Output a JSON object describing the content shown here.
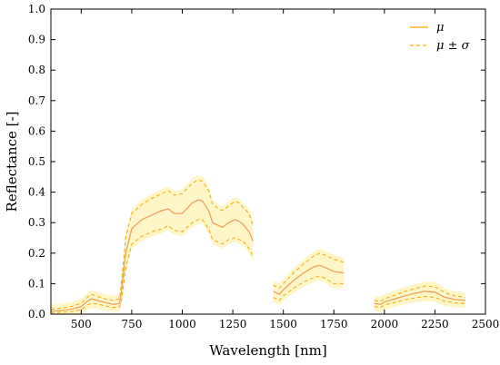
{
  "chart_data": {
    "type": "line",
    "xlabel": "Wavelength [nm]",
    "ylabel": "Reflectance [-]",
    "xlim": [
      350,
      2500
    ],
    "ylim": [
      0,
      1.0
    ],
    "x_ticks": [
      500,
      750,
      1000,
      1250,
      1500,
      1750,
      2000,
      2250,
      2500
    ],
    "x_tick_labels": [
      "500",
      "750",
      "1000",
      "1250",
      "1500",
      "1750",
      "2000",
      "2250",
      "2500"
    ],
    "y_ticks": [
      0,
      0.1,
      0.2,
      0.3,
      0.4,
      0.5,
      0.6,
      0.7,
      0.8,
      0.9,
      1.0
    ],
    "y_tick_labels": [
      "0.0",
      "0.1",
      "0.2",
      "0.3",
      "0.4",
      "0.5",
      "0.6",
      "0.7",
      "0.8",
      "0.9",
      "1.0"
    ],
    "grid": false,
    "legend_position": "top-right",
    "legend": [
      {
        "label": "μ",
        "style": "solid"
      },
      {
        "label": "μ ± σ",
        "style": "dashed"
      }
    ],
    "colors": {
      "mean": "#f0a060",
      "std": "#f5a800",
      "band": "#fff6c8"
    },
    "segments": [
      {
        "x": [
          350,
          400,
          450,
          500,
          530,
          550,
          580,
          620,
          660,
          690,
          700,
          720,
          750,
          800,
          850,
          900,
          930,
          960,
          1000,
          1050,
          1080,
          1100,
          1130,
          1150,
          1180,
          1200,
          1230,
          1260,
          1280,
          1300,
          1330,
          1350
        ],
        "mean": [
          0.01,
          0.012,
          0.016,
          0.025,
          0.042,
          0.05,
          0.045,
          0.038,
          0.032,
          0.035,
          0.08,
          0.2,
          0.28,
          0.31,
          0.325,
          0.34,
          0.345,
          0.33,
          0.33,
          0.365,
          0.375,
          0.37,
          0.34,
          0.3,
          0.29,
          0.285,
          0.3,
          0.31,
          0.305,
          0.295,
          0.27,
          0.24
        ],
        "upper": [
          0.016,
          0.02,
          0.025,
          0.036,
          0.055,
          0.065,
          0.058,
          0.05,
          0.045,
          0.05,
          0.11,
          0.25,
          0.33,
          0.36,
          0.38,
          0.395,
          0.405,
          0.39,
          0.395,
          0.43,
          0.44,
          0.435,
          0.405,
          0.36,
          0.345,
          0.34,
          0.355,
          0.37,
          0.365,
          0.35,
          0.33,
          0.29
        ],
        "lower": [
          0.005,
          0.006,
          0.008,
          0.015,
          0.03,
          0.035,
          0.033,
          0.027,
          0.022,
          0.024,
          0.05,
          0.15,
          0.23,
          0.255,
          0.27,
          0.28,
          0.29,
          0.275,
          0.27,
          0.3,
          0.31,
          0.31,
          0.28,
          0.245,
          0.235,
          0.23,
          0.245,
          0.25,
          0.245,
          0.24,
          0.215,
          0.19
        ]
      },
      {
        "x": [
          1450,
          1480,
          1500,
          1550,
          1600,
          1650,
          1680,
          1700,
          1750,
          1800
        ],
        "mean": [
          0.075,
          0.065,
          0.08,
          0.11,
          0.135,
          0.155,
          0.16,
          0.155,
          0.14,
          0.135
        ],
        "upper": [
          0.095,
          0.085,
          0.1,
          0.135,
          0.165,
          0.19,
          0.2,
          0.195,
          0.18,
          0.17
        ],
        "lower": [
          0.055,
          0.045,
          0.06,
          0.085,
          0.105,
          0.12,
          0.125,
          0.12,
          0.1,
          0.1
        ]
      },
      {
        "x": [
          1950,
          1980,
          2000,
          2050,
          2100,
          2150,
          2200,
          2250,
          2300,
          2350,
          2400
        ],
        "mean": [
          0.035,
          0.032,
          0.04,
          0.05,
          0.06,
          0.068,
          0.075,
          0.072,
          0.055,
          0.048,
          0.045
        ],
        "upper": [
          0.045,
          0.042,
          0.05,
          0.062,
          0.074,
          0.084,
          0.092,
          0.09,
          0.07,
          0.06,
          0.055
        ],
        "lower": [
          0.025,
          0.022,
          0.03,
          0.038,
          0.047,
          0.053,
          0.058,
          0.055,
          0.042,
          0.037,
          0.035
        ]
      }
    ]
  }
}
